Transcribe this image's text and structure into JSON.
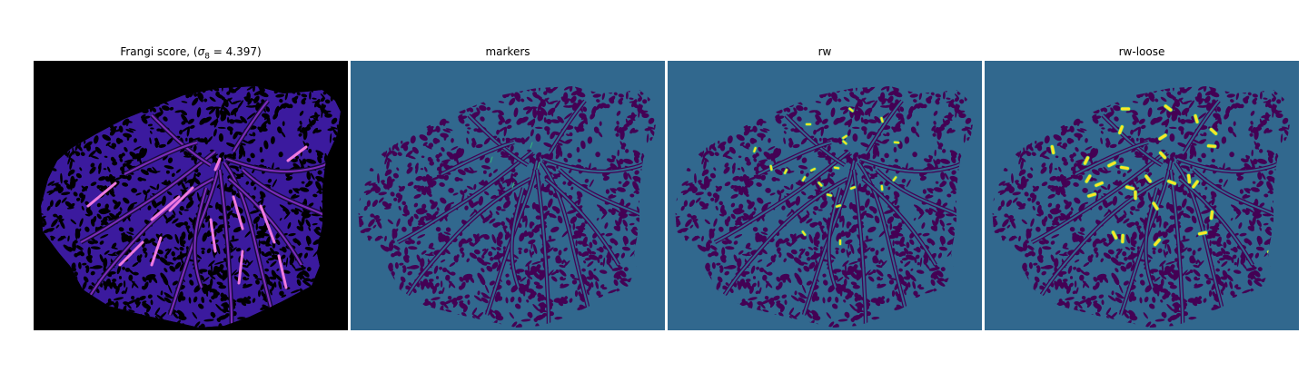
{
  "figure": {
    "panels": [
      {
        "title_prefix": "Frangi score, (",
        "title_sigma_symbol": "σ",
        "title_sigma_subscript": "8",
        "title_sigma_value": " = 4.397)",
        "background_color": "#000000",
        "tissue_color": "#3b1a9e",
        "feature_color": "#000000",
        "highlight_color": "#f07ae0"
      },
      {
        "title": "markers",
        "background_color": "#31688e",
        "feature_color": "#440154",
        "highlight_color": "#35b779"
      },
      {
        "title": "rw",
        "background_color": "#31688e",
        "feature_color": "#440154",
        "highlight_color": "#fde725"
      },
      {
        "title": "rw-loose",
        "background_color": "#31688e",
        "feature_color": "#440154",
        "highlight_color": "#fde725"
      }
    ]
  }
}
